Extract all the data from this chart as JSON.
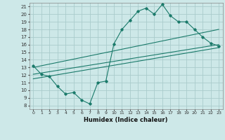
{
  "xlabel": "Humidex (Indice chaleur)",
  "bg_color": "#cde8e8",
  "grid_color": "#aacccc",
  "line_color": "#1a7a6a",
  "xlim": [
    -0.5,
    23.5
  ],
  "ylim": [
    7.5,
    21.5
  ],
  "xticks": [
    0,
    1,
    2,
    3,
    4,
    5,
    6,
    7,
    8,
    9,
    10,
    11,
    12,
    13,
    14,
    15,
    16,
    17,
    18,
    19,
    20,
    21,
    22,
    23
  ],
  "yticks": [
    8,
    9,
    10,
    11,
    12,
    13,
    14,
    15,
    16,
    17,
    18,
    19,
    20,
    21
  ],
  "main_line_x": [
    0,
    1,
    2,
    3,
    4,
    5,
    6,
    7,
    8,
    9,
    10,
    11,
    12,
    13,
    14,
    15,
    16,
    17,
    18,
    19,
    20,
    21,
    22,
    23
  ],
  "main_line_y": [
    13.2,
    12.1,
    11.8,
    10.5,
    9.5,
    9.7,
    8.7,
    8.2,
    11.0,
    11.2,
    16.1,
    18.0,
    19.2,
    20.4,
    20.8,
    20.0,
    21.3,
    19.8,
    19.0,
    19.0,
    18.0,
    17.0,
    16.2,
    15.8
  ],
  "trend1_x": [
    0,
    23
  ],
  "trend1_y": [
    13.0,
    18.0
  ],
  "trend2_x": [
    0,
    23
  ],
  "trend2_y": [
    12.1,
    16.0
  ],
  "trend3_x": [
    0,
    23
  ],
  "trend3_y": [
    11.5,
    15.6
  ]
}
